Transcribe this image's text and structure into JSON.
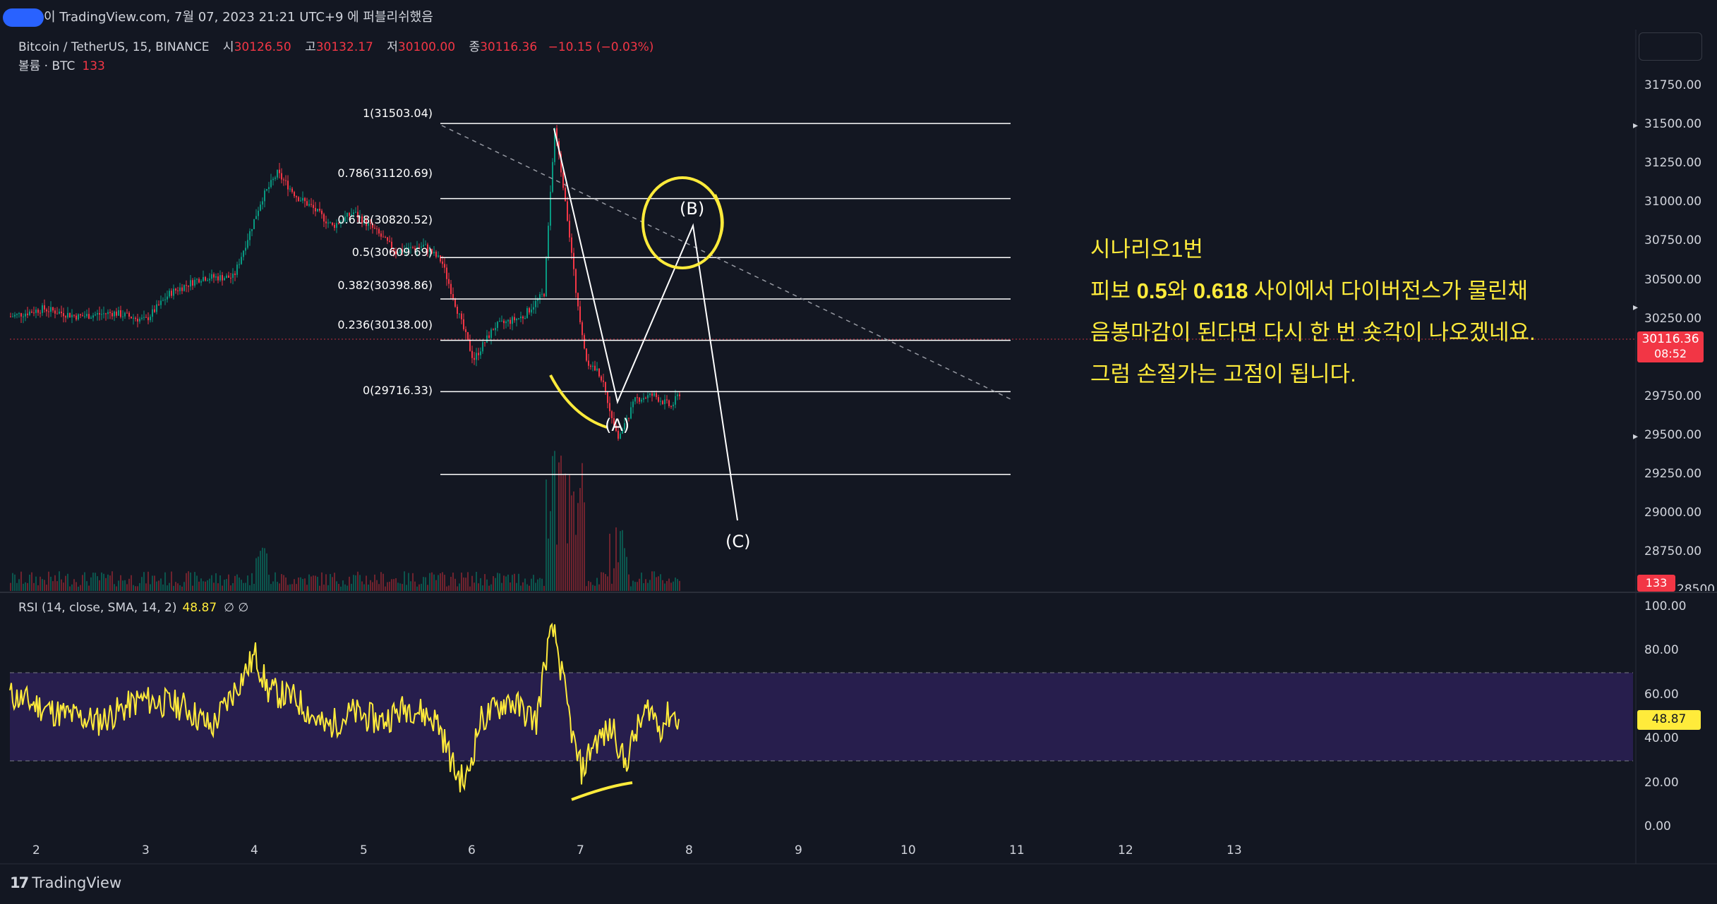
{
  "header": {
    "publish_text": "이 TradingView.com, 7월 07, 2023 21:21 UTC+9 에 퍼블리쉬했음"
  },
  "legend": {
    "symbol": "Bitcoin / TetherUS, 15, BINANCE",
    "open_label": "시",
    "open": "30126.50",
    "high_label": "고",
    "high": "30132.17",
    "low_label": "저",
    "low": "30100.00",
    "close_label": "종",
    "close": "30116.36",
    "change": "−10.15 (−0.03%)",
    "volume_label": "볼륨 · BTC",
    "volume": "133"
  },
  "fib_levels": [
    {
      "label": "1(31503.04)",
      "price": 31503.04
    },
    {
      "label": "0.786(31120.69)",
      "price": 31120.69
    },
    {
      "label": "0.618(30820.52)",
      "price": 30820.52
    },
    {
      "label": "0.5(30609.69)",
      "price": 30609.69
    },
    {
      "label": "0.382(30398.86)",
      "price": 30398.86
    },
    {
      "label": "0.236(30138.00)",
      "price": 30138.0
    },
    {
      "label": "0(29716.33)",
      "price": 29716.33
    }
  ],
  "waves": {
    "a": "(A)",
    "b": "(B)",
    "c": "(C)"
  },
  "annotation": {
    "line1": "시나리오1번",
    "line2_pre": "피보 ",
    "line2_b1": "0.5",
    "line2_mid": "와 ",
    "line2_b2": "0.618",
    "line2_post": " 사이에서 다이버전스가 물린채",
    "line3": "음봉마감이 된다면 다시 한 번 숏각이 나오겠네요.",
    "line4": "그럼 손절가는 고점이 됩니다."
  },
  "price_axis": {
    "ticks": [
      "31750.00",
      "31500.00",
      "31250.00",
      "31000.00",
      "30750.00",
      "30500.00",
      "30250.00",
      "29750.00",
      "29500.00",
      "29250.00",
      "29000.00",
      "28750.00"
    ],
    "current_price": "30116.36",
    "countdown": "08:52",
    "volume_badge": "133",
    "partial_tick": "28500.00"
  },
  "rsi": {
    "legend": "RSI (14, close, SMA, 14, 2)",
    "value": "48.87",
    "flags": "∅ ∅",
    "ticks": [
      "100.00",
      "80.00",
      "60.00",
      "40.00",
      "20.00",
      "0.00"
    ],
    "badge": "48.87"
  },
  "time_axis": {
    "ticks": [
      "2",
      "3",
      "4",
      "5",
      "6",
      "7",
      "8",
      "9",
      "10",
      "11",
      "12",
      "13"
    ]
  },
  "brand": {
    "logo": "17",
    "name": "TradingView"
  },
  "colors": {
    "background": "#131722",
    "up": "#089981",
    "down": "#f23645",
    "rsi_line": "#ffeb3b",
    "rsi_band": "#2a1f52",
    "annotation": "#ffeb3b"
  }
}
